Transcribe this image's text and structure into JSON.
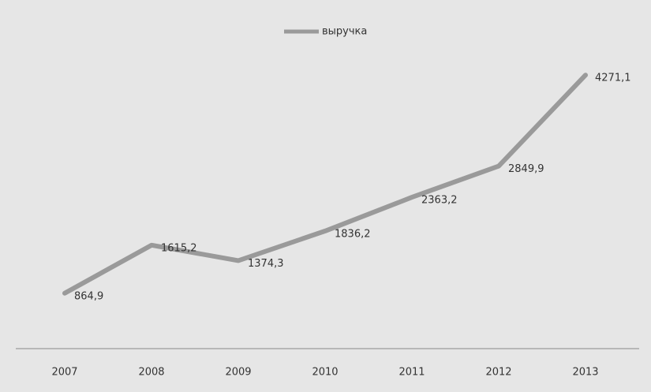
{
  "chart_data": {
    "type": "line",
    "categories": [
      "2007",
      "2008",
      "2009",
      "2010",
      "2011",
      "2012",
      "2013"
    ],
    "series": [
      {
        "name": "выручка",
        "color": "#9a9a9a",
        "values": [
          864.9,
          1615.2,
          1374.3,
          1836.2,
          2363.2,
          2849.9,
          4271.1
        ],
        "value_labels": [
          "864,9",
          "1615,2",
          "1374,3",
          "1836,2",
          "2363,2",
          "2849,9",
          "4271,1"
        ]
      }
    ],
    "ylim": [
      0,
      5000
    ],
    "legend": "top"
  }
}
